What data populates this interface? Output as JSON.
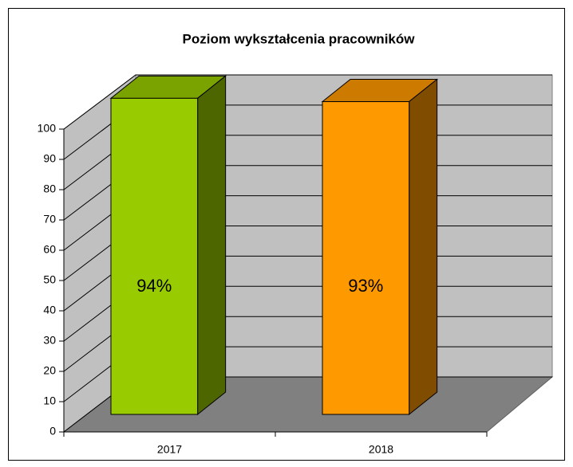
{
  "chart_data": {
    "type": "bar3d",
    "title": "Poziom wykształcenia pracowników",
    "categories": [
      "2017",
      "2018"
    ],
    "series": [
      {
        "values": [
          94,
          93
        ],
        "value_labels": [
          "94%",
          "93%"
        ],
        "colors": [
          "#99cc00",
          "#ff9900"
        ]
      }
    ],
    "ylim": [
      0,
      100
    ],
    "yticks": [
      0,
      10,
      20,
      30,
      40,
      50,
      60,
      70,
      80,
      90,
      100
    ],
    "grid": true
  }
}
